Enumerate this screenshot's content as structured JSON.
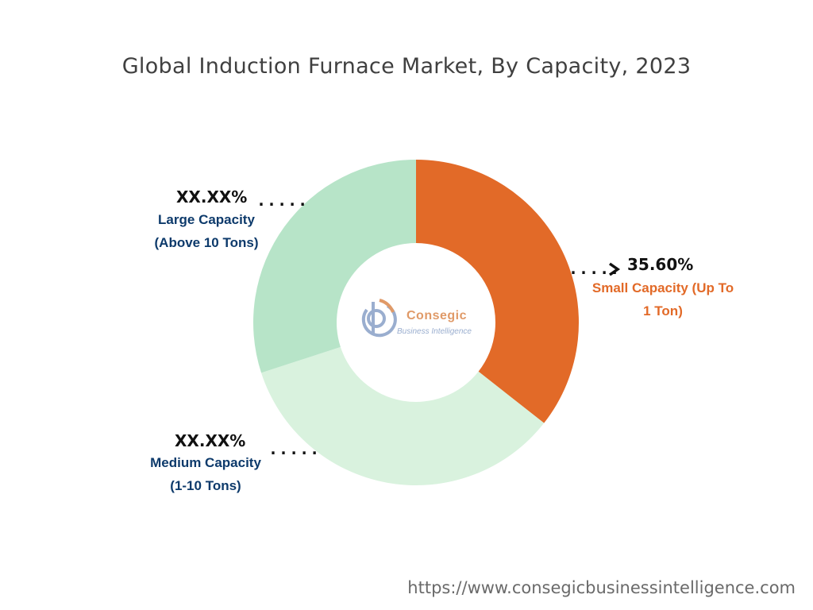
{
  "footer": "https://www.consegicbusinessintelligence.com",
  "logo": {
    "name": "Consegic",
    "tagline": "Business Intelligence"
  },
  "chart_data": {
    "type": "pie",
    "title": "Global Induction Furnace Market, By Capacity, 2023",
    "donut": true,
    "slices": [
      {
        "label": "Small Capacity (Up To 1 Ton)",
        "label_lines": [
          "Small Capacity (Up To",
          "1 Ton)"
        ],
        "value": 35.6,
        "value_text": "35.60%",
        "color": "#e26a28",
        "label_color": "#e26a28"
      },
      {
        "label": "Medium Capacity (1-10 Tons)",
        "label_lines": [
          "Medium Capacity",
          "(1-10 Tons)"
        ],
        "value": 34.4,
        "value_text": "XX.XX%",
        "color": "#d9f2de",
        "label_color": "#0d3a6b"
      },
      {
        "label": "Large Capacity (Above 10 Tons)",
        "label_lines": [
          "Large Capacity",
          "(Above 10 Tons)"
        ],
        "value": 30.0,
        "value_text": "XX.XX%",
        "color": "#b7e4c8",
        "label_color": "#0d3a6b"
      }
    ]
  }
}
